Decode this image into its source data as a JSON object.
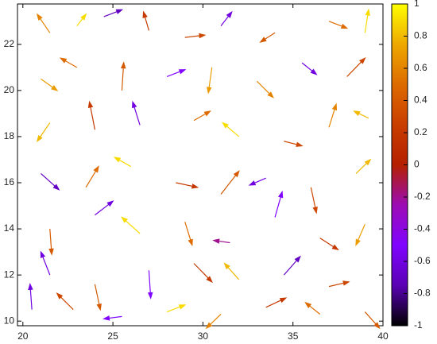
{
  "chart_data": {
    "type": "quiver",
    "xlim": [
      19.7,
      40
    ],
    "ylim": [
      9.8,
      23.75
    ],
    "xticks": [
      20,
      25,
      30,
      35,
      40
    ],
    "yticks": [
      10,
      12,
      14,
      16,
      18,
      20,
      22
    ],
    "clim": [
      -1,
      1
    ],
    "cticks": [
      -1,
      -0.8,
      -0.6,
      -0.4,
      -0.2,
      0,
      0.2,
      0.4,
      0.6,
      0.8,
      1
    ],
    "colormap": [
      "#000000",
      "#5a02b4",
      "#8004ff",
      "#9c0cb4",
      "#b42000",
      "#c93e00",
      "#dd6b00",
      "#eea800",
      "#ffff00"
    ],
    "x": [
      21.5,
      23,
      24.5,
      27,
      29,
      31,
      34,
      37,
      39,
      21,
      23,
      25.5,
      28,
      30.5,
      33,
      35.5,
      38,
      21.5,
      24,
      26.5,
      29.5,
      32,
      34.5,
      37,
      39.2,
      21,
      23.5,
      26,
      28.5,
      31,
      33.5,
      36,
      38.5,
      21.5,
      24,
      26.5,
      29,
      31.5,
      34,
      36.5,
      39,
      21.5,
      24,
      27,
      29.5,
      32,
      34.5,
      37,
      20.5,
      22.8,
      25.5,
      28,
      31,
      33.5,
      36.5,
      39
    ],
    "y": [
      22.5,
      22.8,
      23.2,
      22.6,
      22.3,
      22.8,
      22.5,
      23,
      22.5,
      20.5,
      21,
      20,
      20.6,
      21,
      20.4,
      21.2,
      20.6,
      18.6,
      18.3,
      18.5,
      18.7,
      18,
      17.8,
      18.4,
      18.8,
      16.4,
      15.8,
      16.7,
      16,
      15.5,
      16.2,
      15.8,
      16.4,
      14,
      14.6,
      13.8,
      14.3,
      13.4,
      14.5,
      13.6,
      14.2,
      12,
      11.6,
      12.2,
      12.5,
      11.8,
      12,
      11.5,
      10.5,
      10.5,
      10.2,
      10.4,
      10.3,
      10.6,
      10.3,
      10.4
    ],
    "u": [
      -0.7,
      0.5,
      1,
      -0.3,
      1.1,
      0.6,
      -0.8,
      1,
      0.2,
      0.9,
      -0.9,
      0.1,
      1,
      -0.2,
      0.9,
      0.8,
      1,
      -0.7,
      -0.3,
      -0.4,
      0.9,
      -0.9,
      1,
      0.4,
      -0.8,
      1,
      0.7,
      -0.9,
      1.2,
      1,
      -0.9,
      0.3,
      0.8,
      0.1,
      1,
      -1,
      0.4,
      -0.9,
      0.4,
      1,
      -0.5,
      -0.5,
      0.3,
      0.1,
      1,
      -0.8,
      0.9,
      1.1,
      -0.1,
      -0.9,
      -1,
      1,
      -0.8,
      1.1,
      -0.8,
      0.8
    ],
    "v": [
      0.8,
      0.5,
      0.3,
      0.8,
      0.1,
      0.6,
      -0.4,
      -0.3,
      1,
      -0.5,
      0.4,
      1.2,
      0.3,
      -1.1,
      -0.7,
      -0.5,
      0.8,
      -0.8,
      1.2,
      1,
      0.4,
      0.6,
      -0.2,
      1,
      0.3,
      -0.7,
      0.9,
      0.4,
      -0.2,
      1,
      -0.3,
      -1.1,
      0.6,
      -1.1,
      0.6,
      0.7,
      -1,
      0.1,
      1.1,
      -0.5,
      -0.9,
      1,
      -1.1,
      -1.2,
      -0.8,
      0.7,
      0.8,
      0.2,
      1.1,
      0.7,
      -0.1,
      0.3,
      -0.6,
      0.4,
      0.5,
      -0.7
    ],
    "c": [
      0.6,
      0.9,
      -0.7,
      0.2,
      0.3,
      -0.6,
      0.4,
      0.5,
      0.9,
      0.7,
      0.5,
      0.4,
      -0.5,
      0.7,
      0.6,
      -0.6,
      0.3,
      0.8,
      0.2,
      -0.6,
      0.5,
      0.9,
      0.3,
      0.6,
      0.8,
      -0.7,
      0.5,
      0.9,
      0.2,
      0.4,
      -0.6,
      0.3,
      0.8,
      0.4,
      -0.6,
      0.9,
      0.5,
      -0.2,
      -0.5,
      0.2,
      0.7,
      -0.6,
      0.4,
      -0.5,
      0.2,
      0.8,
      -0.7,
      0.3,
      -0.6,
      0.3,
      -0.5,
      0.9,
      0.6,
      0.2,
      0.5,
      0.4
    ]
  }
}
